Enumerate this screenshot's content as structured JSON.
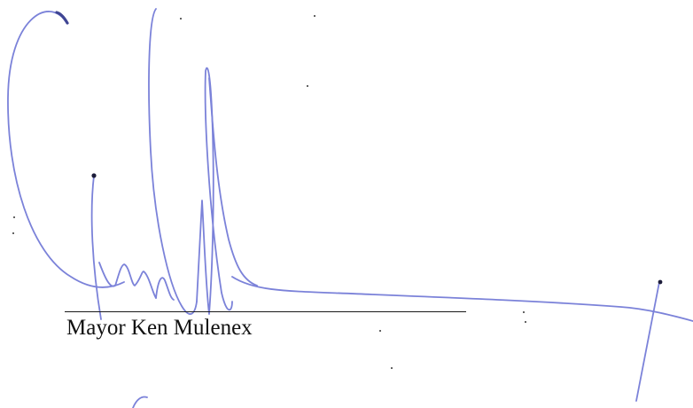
{
  "signature_block": {
    "caption": "Mayor Ken Mulenex",
    "ink_color": "#7b82d9",
    "rule_color": "#1a1a1a"
  }
}
